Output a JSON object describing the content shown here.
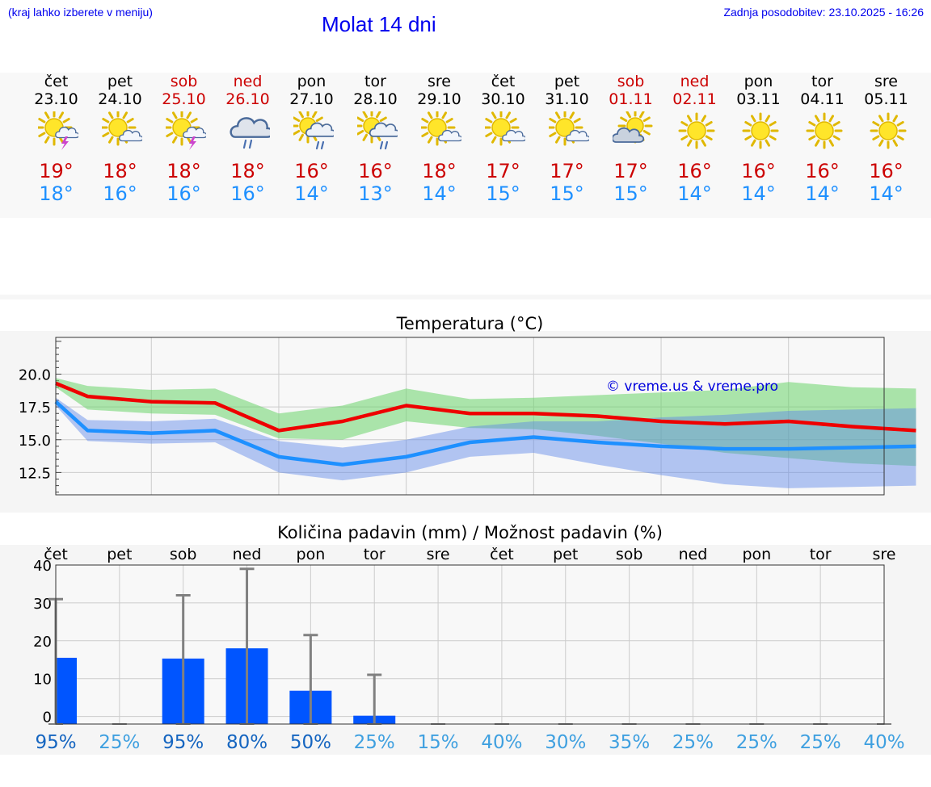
{
  "header": {
    "hint": "(kraj lahko izberete v meniju)",
    "title": "Molat 14 dni",
    "updated": "Zadnja posodobitev: 23.10.2025 - 16:26"
  },
  "colors": {
    "max": "#cc0000",
    "min": "#1e90ff",
    "weekend": "#cc0000",
    "bar": "#0055ff",
    "pop_dark": "#1565c0",
    "pop_light": "#3fa0e0"
  },
  "days": [
    {
      "name": "čet",
      "date": "23.10",
      "weekend": false,
      "icon": "sun-cloud-thunder-icon",
      "max": "19°",
      "min": "18°"
    },
    {
      "name": "pet",
      "date": "24.10",
      "weekend": false,
      "icon": "sun-small-cloud-icon",
      "max": "18°",
      "min": "16°"
    },
    {
      "name": "sob",
      "date": "25.10",
      "weekend": true,
      "icon": "sun-cloud-thunder-icon",
      "max": "18°",
      "min": "16°"
    },
    {
      "name": "ned",
      "date": "26.10",
      "weekend": true,
      "icon": "cloud-rain-icon",
      "max": "18°",
      "min": "16°"
    },
    {
      "name": "pon",
      "date": "27.10",
      "weekend": false,
      "icon": "sun-cloud-rain-icon",
      "max": "16°",
      "min": "14°"
    },
    {
      "name": "tor",
      "date": "28.10",
      "weekend": false,
      "icon": "sun-cloud-rain-icon",
      "max": "16°",
      "min": "13°"
    },
    {
      "name": "sre",
      "date": "29.10",
      "weekend": false,
      "icon": "sun-small-cloud-icon",
      "max": "18°",
      "min": "14°"
    },
    {
      "name": "čet",
      "date": "30.10",
      "weekend": false,
      "icon": "sun-small-cloud-icon",
      "max": "17°",
      "min": "15°"
    },
    {
      "name": "pet",
      "date": "31.10",
      "weekend": false,
      "icon": "sun-small-cloud-icon",
      "max": "17°",
      "min": "15°"
    },
    {
      "name": "sob",
      "date": "01.11",
      "weekend": true,
      "icon": "cloud-sun-icon",
      "max": "17°",
      "min": "15°"
    },
    {
      "name": "ned",
      "date": "02.11",
      "weekend": true,
      "icon": "sun-icon",
      "max": "16°",
      "min": "14°"
    },
    {
      "name": "pon",
      "date": "03.11",
      "weekend": false,
      "icon": "sun-icon",
      "max": "16°",
      "min": "14°"
    },
    {
      "name": "tor",
      "date": "04.11",
      "weekend": false,
      "icon": "sun-icon",
      "max": "16°",
      "min": "14°"
    },
    {
      "name": "sre",
      "date": "05.11",
      "weekend": false,
      "icon": "sun-icon",
      "max": "16°",
      "min": "14°"
    }
  ],
  "chart_data": [
    {
      "type": "line",
      "title": "Temperatura (°C)",
      "watermark": "© vreme.us & vreme.pro",
      "y_ticks": [
        "20.0",
        "17.5",
        "15.0",
        "12.5"
      ],
      "ylim": [
        10.8,
        22.8
      ],
      "x": [
        0,
        0.5,
        1.5,
        2.5,
        3.5,
        4.5,
        5.5,
        6.5,
        7.5,
        8.5,
        9.5,
        10.5,
        11.5,
        12.5,
        13.5
      ],
      "series": [
        {
          "values": [
            19.3,
            18.3,
            17.9,
            17.8,
            15.7,
            16.4,
            17.6,
            17.0,
            17.0,
            16.8,
            16.4,
            16.2,
            16.4,
            16.0,
            15.7
          ]
        },
        {
          "values": [
            17.9,
            15.7,
            15.5,
            15.7,
            13.7,
            13.1,
            13.7,
            14.8,
            15.2,
            14.8,
            14.5,
            14.3,
            14.3,
            14.4,
            14.5
          ]
        }
      ],
      "max_band_low": [
        19.0,
        17.3,
        17.0,
        16.9,
        15.1,
        15.0,
        16.4,
        15.9,
        15.8,
        15.3,
        14.7,
        14.0,
        13.6,
        13.2,
        13.0
      ],
      "max_band_high": [
        19.7,
        19.1,
        18.8,
        18.9,
        17.0,
        17.6,
        18.9,
        18.1,
        18.2,
        18.4,
        18.6,
        18.8,
        19.4,
        19.0,
        18.9
      ],
      "min_band_low": [
        17.6,
        14.9,
        14.7,
        14.8,
        12.5,
        11.9,
        12.5,
        13.7,
        14.0,
        13.1,
        12.3,
        11.6,
        11.3,
        11.4,
        11.5
      ],
      "min_band_high": [
        18.2,
        16.5,
        16.4,
        16.6,
        14.9,
        14.4,
        15.0,
        16.0,
        16.4,
        16.4,
        16.7,
        16.9,
        17.2,
        17.3,
        17.4
      ]
    },
    {
      "type": "bar",
      "title": "Količina padavin (mm) / Možnost padavin (%)",
      "categories": [
        "čet",
        "pet",
        "sob",
        "ned",
        "pon",
        "tor",
        "sre",
        "čet",
        "pet",
        "sob",
        "ned",
        "pon",
        "tor",
        "sre"
      ],
      "y_ticks": [
        "40",
        "30",
        "20",
        "10",
        "0"
      ],
      "ylim": [
        -2,
        40
      ],
      "values": [
        15.5,
        0,
        15.3,
        18.0,
        6.8,
        0.2,
        0,
        0,
        0,
        0,
        0,
        0,
        0,
        0
      ],
      "error_high": [
        31,
        0,
        32,
        39,
        21.5,
        11,
        0,
        0,
        0,
        0,
        0,
        0,
        0,
        0
      ],
      "probability": [
        "95%",
        "25%",
        "95%",
        "80%",
        "50%",
        "25%",
        "15%",
        "40%",
        "30%",
        "35%",
        "25%",
        "25%",
        "25%",
        "40%"
      ]
    }
  ]
}
